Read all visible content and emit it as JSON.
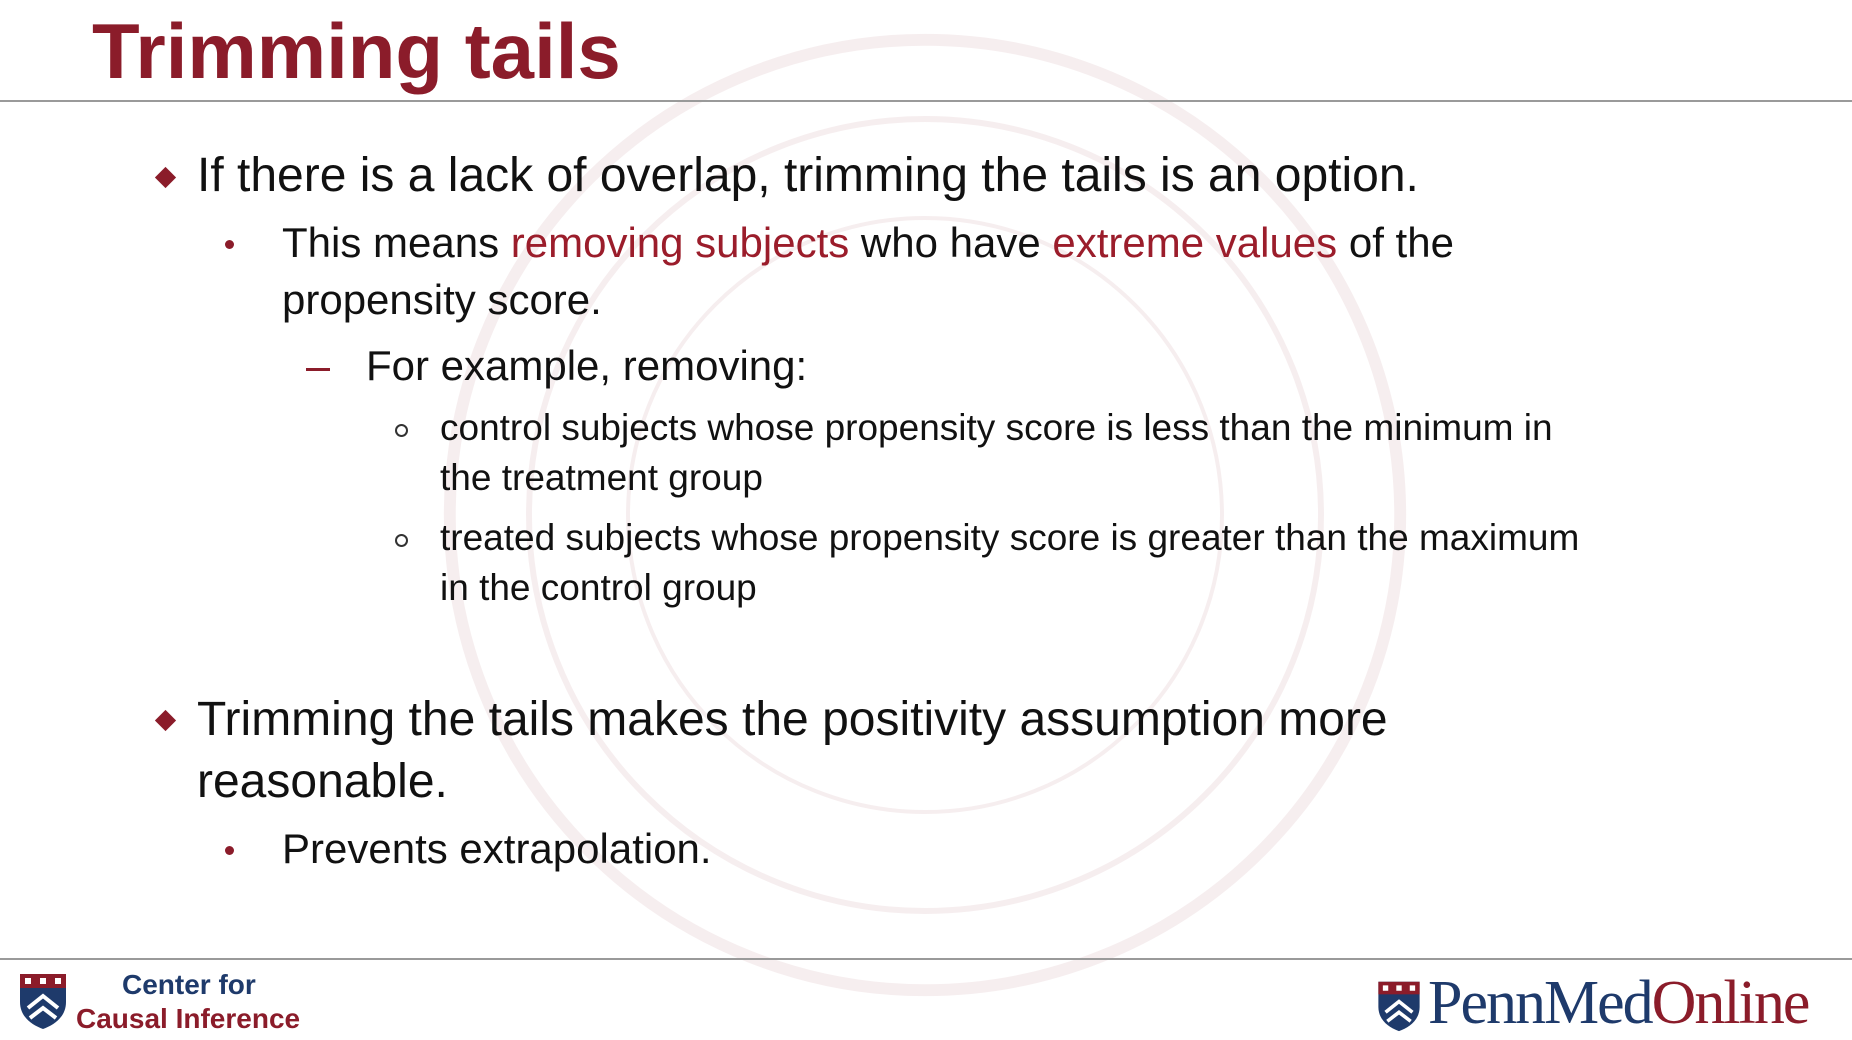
{
  "title": "Trimming tails",
  "bullets": {
    "b1": {
      "text": "If there is a lack of overlap, trimming the tails is an option.",
      "sub": {
        "p1": "This means ",
        "h1": "removing subjects",
        "p2": " who have ",
        "h2": "extreme values",
        "p3": " of the",
        "line2": "propensity score.",
        "example": {
          "text": "For example, removing:",
          "items": [
            {
              "line1": "control subjects whose propensity score is less than the minimum in",
              "line2": "the treatment group"
            },
            {
              "line1": "treated subjects whose propensity score is greater than the maximum",
              "line2": "in the control group"
            }
          ]
        }
      }
    },
    "b2": {
      "line1": "Trimming the tails makes the positivity assumption more",
      "line2": "reasonable.",
      "sub": "Prevents extrapolation."
    }
  },
  "footer": {
    "cci_line1": "Center for",
    "cci_line2": "Causal Inference",
    "pmo_part1": "PennMed",
    "pmo_part2": "Online"
  },
  "colors": {
    "accent": "#8b1c2a",
    "navy": "#1e3a6b"
  },
  "icons": {
    "watermark": "university-seal-icon",
    "cci_logo": "penn-shield-icon",
    "pmo_logo": "penn-shield-icon"
  }
}
